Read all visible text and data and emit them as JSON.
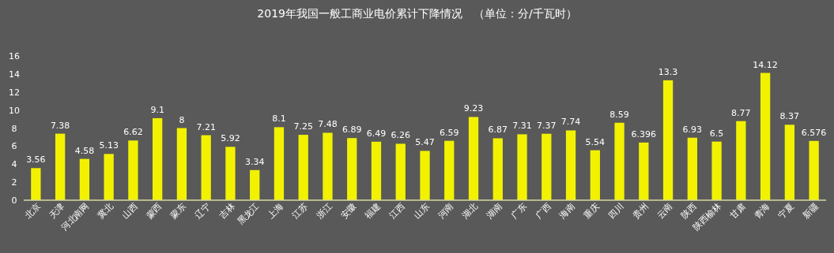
{
  "chart_data": {
    "type": "bar",
    "title": "2019年我国一般工商业电价累计下降情况　（单位：分/千瓦时）",
    "categories": [
      "北京",
      "天津",
      "河北南网",
      "冀北",
      "山西",
      "蒙西",
      "蒙东",
      "辽宁",
      "吉林",
      "黑龙江",
      "上海",
      "江苏",
      "浙江",
      "安徽",
      "福建",
      "江西",
      "山东",
      "河南",
      "湖北",
      "湖南",
      "广东",
      "广西",
      "海南",
      "重庆",
      "四川",
      "贵州",
      "云南",
      "陕西",
      "陕西榆林",
      "甘肃",
      "青海",
      "宁夏",
      "新疆"
    ],
    "values": [
      3.56,
      7.38,
      4.58,
      5.13,
      6.62,
      9.1,
      8,
      7.21,
      5.92,
      3.34,
      8.1,
      7.25,
      7.48,
      6.89,
      6.49,
      6.26,
      5.47,
      6.59,
      9.23,
      6.87,
      7.31,
      7.37,
      7.74,
      5.54,
      8.59,
      6.396,
      13.3,
      6.93,
      6.5,
      8.77,
      14.12,
      8.37,
      6.576
    ],
    "color": "#f2f200",
    "data_labels": true,
    "ylim": [
      0,
      16
    ],
    "yticks": [
      0,
      2,
      4,
      6,
      8,
      10,
      12,
      14,
      16
    ]
  }
}
